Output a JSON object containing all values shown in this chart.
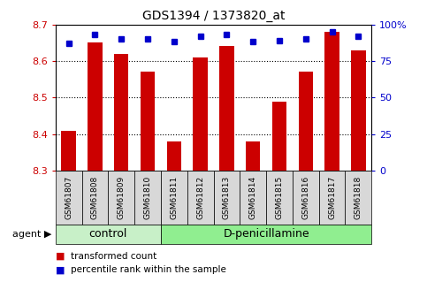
{
  "title": "GDS1394 / 1373820_at",
  "samples": [
    "GSM61807",
    "GSM61808",
    "GSM61809",
    "GSM61810",
    "GSM61811",
    "GSM61812",
    "GSM61813",
    "GSM61814",
    "GSM61815",
    "GSM61816",
    "GSM61817",
    "GSM61818"
  ],
  "transformed_counts": [
    8.41,
    8.65,
    8.62,
    8.57,
    8.38,
    8.61,
    8.64,
    8.38,
    8.49,
    8.57,
    8.68,
    8.63
  ],
  "percentile_ranks": [
    87,
    93,
    90,
    90,
    88,
    92,
    93,
    88,
    89,
    90,
    95,
    92
  ],
  "y_min": 8.3,
  "y_max": 8.7,
  "y_ticks": [
    8.3,
    8.4,
    8.5,
    8.6,
    8.7
  ],
  "right_y_ticks": [
    0,
    25,
    50,
    75,
    100
  ],
  "right_y_tick_labels": [
    "0",
    "25",
    "50",
    "75",
    "100%"
  ],
  "control_samples": 4,
  "control_label": "control",
  "treatment_label": "D-penicillamine",
  "agent_label": "agent",
  "bar_color": "#cc0000",
  "dot_color": "#0000cc",
  "control_bg": "#c8f0c8",
  "treatment_bg": "#90ee90",
  "tick_label_bg": "#d8d8d8",
  "left_tick_color": "#cc0000",
  "right_tick_color": "#0000cc",
  "grid_lines": [
    8.4,
    8.5,
    8.6
  ],
  "bar_width": 0.55
}
